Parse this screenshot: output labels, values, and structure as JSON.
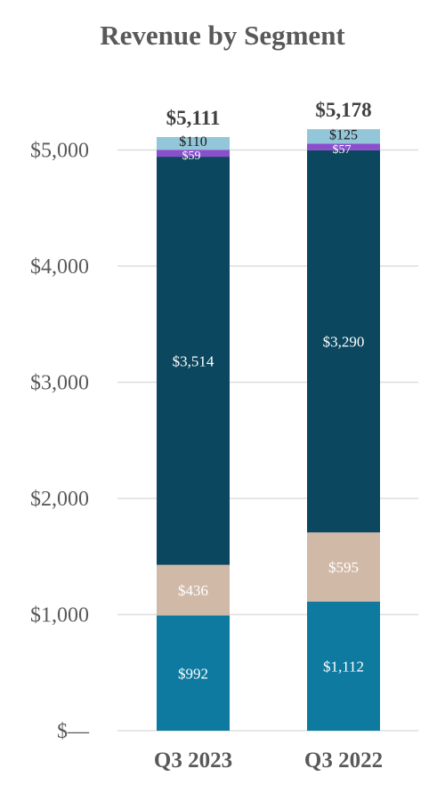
{
  "chart_data": {
    "type": "bar",
    "stacked": true,
    "title": "Revenue by Segment",
    "categories": [
      "Q3 2023",
      "Q3 2022"
    ],
    "totals": [
      "$5,111",
      "$5,178"
    ],
    "ylim": [
      0,
      5000
    ],
    "yticks": [
      0,
      1000,
      2000,
      3000,
      4000,
      5000
    ],
    "ytick_labels": [
      "$—",
      "$1,000",
      "$2,000",
      "$3,000",
      "$4,000",
      "$5,000"
    ],
    "grid": true,
    "series": [
      {
        "values": [
          992,
          1112
        ],
        "labels": [
          "$992",
          "$1,112"
        ],
        "color": "#0e7aa0"
      },
      {
        "values": [
          436,
          595
        ],
        "labels": [
          "$436",
          "$595"
        ],
        "color": "#d1b9a8"
      },
      {
        "values": [
          3514,
          3290
        ],
        "labels": [
          "$3,514",
          "$3,290"
        ],
        "color": "#0b475f"
      },
      {
        "values": [
          59,
          57
        ],
        "labels": [
          "$59",
          "$57"
        ],
        "color": "#8b4fcc"
      },
      {
        "values": [
          110,
          125
        ],
        "labels": [
          "$110",
          "$125"
        ],
        "color": "#93c6d8"
      }
    ]
  }
}
